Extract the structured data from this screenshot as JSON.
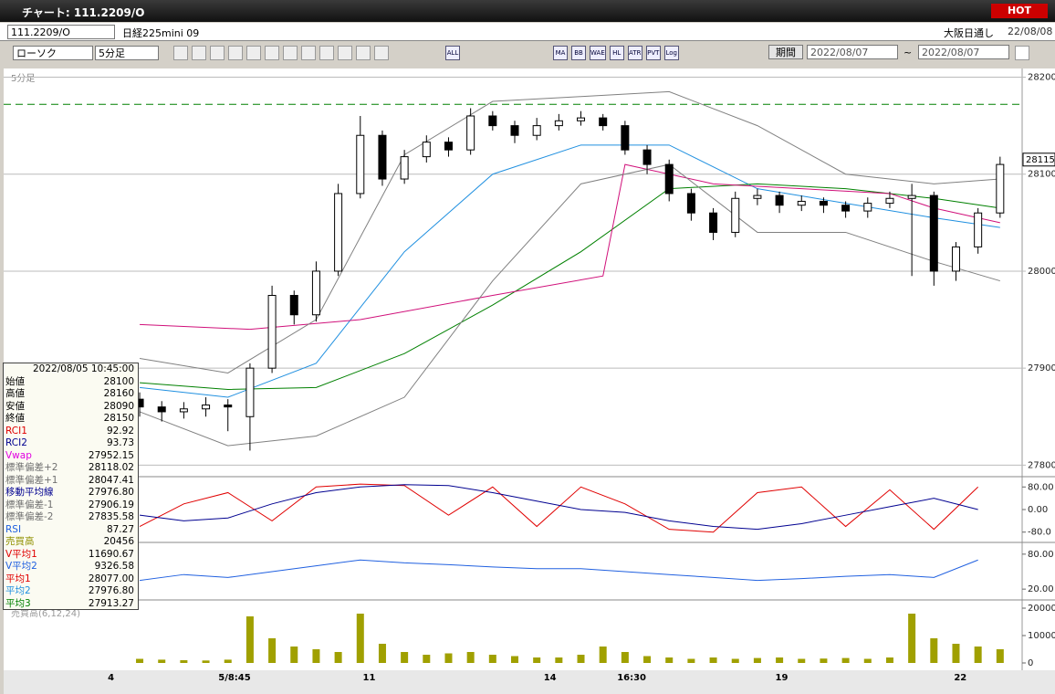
{
  "window": {
    "title": "チャート: 111.2209/O",
    "badge": "HOT"
  },
  "header": {
    "symbol": "111.2209/O",
    "name": "日経225mini 09",
    "market": "大阪日通し",
    "date": "22/08/08"
  },
  "toolbar": {
    "chart_style": "ローソク",
    "period": "5分足",
    "buttons": [
      "ALL",
      "MA",
      "BB",
      "WAE",
      "HL",
      "ATR",
      "PVT",
      "Log"
    ],
    "range_label": "期間",
    "from": "2022/08/07",
    "separator": "~",
    "to": "2022/08/07"
  },
  "info": {
    "datetime": "2022/08/05  10:45:00",
    "rows": [
      {
        "label": "始値",
        "value": "28100",
        "color": "#000000"
      },
      {
        "label": "高値",
        "value": "28160",
        "color": "#000000"
      },
      {
        "label": "安値",
        "value": "28090",
        "color": "#000000"
      },
      {
        "label": "終値",
        "value": "28150",
        "color": "#000000"
      },
      {
        "label": "RCI1",
        "value": "92.92",
        "color": "#e00000"
      },
      {
        "label": "RCI2",
        "value": "93.73",
        "color": "#000090"
      },
      {
        "label": "Vwap",
        "value": "27952.15",
        "color": "#e000e0"
      },
      {
        "label": "標準偏差+2",
        "value": "28118.02",
        "color": "#707070"
      },
      {
        "label": "標準偏差+1",
        "value": "28047.41",
        "color": "#707070"
      },
      {
        "label": "移動平均線",
        "value": "27976.80",
        "color": "#000090"
      },
      {
        "label": "標準偏差-1",
        "value": "27906.19",
        "color": "#707070"
      },
      {
        "label": "標準偏差-2",
        "value": "27835.58",
        "color": "#707070"
      },
      {
        "label": "RSI",
        "value": "87.27",
        "color": "#2060e0"
      },
      {
        "label": "売買高",
        "value": "20456",
        "color": "#909000"
      },
      {
        "label": "V平均1",
        "value": "11690.67",
        "color": "#e00000"
      },
      {
        "label": "V平均2",
        "value": "9326.58",
        "color": "#2060e0"
      },
      {
        "label": "平均1",
        "value": "28077.00",
        "color": "#e00000"
      },
      {
        "label": "平均2",
        "value": "27976.80",
        "color": "#2090e0"
      },
      {
        "label": "平均3",
        "value": "27913.27",
        "color": "#008000"
      }
    ]
  },
  "chart_data": {
    "type": "candlestick",
    "panel_label": "5分足",
    "xlim": [
      -6,
      40
    ],
    "xticks": [
      {
        "value": -1.3,
        "label": "4"
      },
      {
        "value": 4.3,
        "label": "5/8:45"
      },
      {
        "value": 10.4,
        "label": "11"
      },
      {
        "value": 18.6,
        "label": "14"
      },
      {
        "value": 22.3,
        "label": "16:30"
      },
      {
        "value": 29.1,
        "label": "19"
      },
      {
        "value": 37.2,
        "label": "22"
      }
    ],
    "ylim": [
      27790,
      28208
    ],
    "yticks": [
      27800,
      27900,
      28000,
      28100,
      28200
    ],
    "last_price": 28115,
    "hline": 28172,
    "hline_color": "#008000",
    "open": [
      27868,
      27860,
      27855,
      27858,
      27862,
      27850,
      27900,
      27975,
      27955,
      28000,
      28080,
      28140,
      28095,
      28118,
      28133,
      28125,
      28160,
      28150,
      28140,
      28150,
      28155,
      28158,
      28150,
      28125,
      28110,
      28080,
      28060,
      28040,
      28075,
      28078,
      28068,
      28072,
      28068,
      28062,
      28070,
      28075,
      28078,
      28000,
      28025,
      28060
    ],
    "high": [
      27875,
      27866,
      27865,
      27870,
      27868,
      27905,
      27985,
      27980,
      28010,
      28090,
      28160,
      28145,
      28125,
      28140,
      28138,
      28168,
      28165,
      28155,
      28158,
      28162,
      28165,
      28162,
      28155,
      28130,
      28115,
      28085,
      28065,
      28082,
      28085,
      28082,
      28078,
      28076,
      28072,
      28076,
      28082,
      28090,
      28082,
      28030,
      28065,
      28118
    ],
    "low": [
      27850,
      27845,
      27848,
      27850,
      27835,
      27815,
      27895,
      27945,
      27948,
      27995,
      28075,
      28088,
      28090,
      28112,
      28118,
      28120,
      28145,
      28132,
      28135,
      28145,
      28150,
      28145,
      28120,
      28100,
      28072,
      28052,
      28032,
      28035,
      28068,
      28060,
      28062,
      28060,
      28055,
      28055,
      28065,
      27995,
      27985,
      27990,
      28018,
      28055
    ],
    "close": [
      27860,
      27855,
      27858,
      27862,
      27860,
      27900,
      27975,
      27955,
      28000,
      28080,
      28140,
      28095,
      28118,
      28133,
      28125,
      28160,
      28150,
      28140,
      28150,
      28155,
      28158,
      28150,
      28125,
      28110,
      28080,
      28060,
      28040,
      28075,
      28078,
      28068,
      28072,
      28068,
      28062,
      28070,
      28075,
      28078,
      28000,
      28025,
      28060,
      28110
    ],
    "overlays": [
      {
        "color": "#2090e0",
        "x": [
          0,
          4,
          8,
          12,
          16,
          20,
          24,
          28,
          32,
          36,
          39
        ],
        "values": [
          27880,
          27870,
          27905,
          28020,
          28100,
          28130,
          28130,
          28085,
          28070,
          28055,
          28045
        ]
      },
      {
        "color": "#008000",
        "x": [
          0,
          4,
          8,
          12,
          16,
          20,
          24,
          28,
          32,
          36,
          39
        ],
        "values": [
          27885,
          27878,
          27880,
          27915,
          27965,
          28020,
          28085,
          28090,
          28085,
          28075,
          28065
        ]
      },
      {
        "color": "#d0107a",
        "x": [
          0,
          5,
          10,
          16,
          21,
          22,
          26,
          30,
          34,
          36,
          39
        ],
        "values": [
          27945,
          27940,
          27950,
          27975,
          27995,
          28110,
          28090,
          28085,
          28080,
          28065,
          28050
        ]
      },
      {
        "color": "#808080",
        "x": [
          0,
          4,
          8,
          12,
          16,
          20,
          24,
          28,
          32,
          36,
          39
        ],
        "values": [
          27910,
          27895,
          27950,
          28120,
          28175,
          28180,
          28185,
          28150,
          28100,
          28090,
          28095
        ]
      },
      {
        "color": "#808080",
        "x": [
          0,
          4,
          8,
          12,
          16,
          20,
          24,
          28,
          32,
          36,
          39
        ],
        "values": [
          27855,
          27820,
          27830,
          27870,
          27990,
          28090,
          28110,
          28040,
          28040,
          28010,
          27990
        ]
      }
    ],
    "rci": {
      "ylim": [
        -110,
        110
      ],
      "yticks": [
        {
          "value": 80,
          "label": "80.00"
        },
        {
          "value": 0,
          "label": "0.00"
        },
        {
          "value": -80,
          "label": "-80.0"
        }
      ],
      "x": [
        0,
        2,
        4,
        6,
        8,
        10,
        12,
        14,
        16,
        18,
        20,
        22,
        24,
        26,
        28,
        30,
        32,
        34,
        36,
        38
      ],
      "series": [
        {
          "color": "#e00000",
          "values": [
            -60,
            20,
            60,
            -40,
            80,
            90,
            85,
            -20,
            80,
            -60,
            80,
            20,
            -70,
            -80,
            60,
            80,
            -60,
            70,
            -70,
            80
          ]
        },
        {
          "color": "#000090",
          "values": [
            -20,
            -40,
            -30,
            20,
            60,
            80,
            88,
            85,
            60,
            30,
            0,
            -10,
            -40,
            -60,
            -70,
            -50,
            -20,
            10,
            40,
            0
          ]
        }
      ]
    },
    "rsi": {
      "ylim": [
        3,
        97
      ],
      "yticks": [
        {
          "value": 80,
          "label": "80.00"
        },
        {
          "value": 20,
          "label": "20.00"
        }
      ],
      "color": "#2060e0",
      "x": [
        0,
        2,
        4,
        6,
        8,
        10,
        12,
        14,
        16,
        18,
        20,
        22,
        24,
        26,
        28,
        30,
        32,
        34,
        36,
        38
      ],
      "values": [
        35,
        45,
        40,
        50,
        60,
        70,
        65,
        62,
        58,
        55,
        55,
        50,
        45,
        40,
        35,
        38,
        42,
        45,
        40,
        70
      ]
    },
    "volume": {
      "label": "売買高(6,12,24)",
      "ylim": [
        0,
        22000
      ],
      "yticks": [
        0,
        10000,
        20000
      ],
      "color": "#a0a000",
      "values": [
        1500,
        1200,
        1000,
        900,
        1200,
        17000,
        9000,
        6000,
        5000,
        4000,
        18000,
        7000,
        4000,
        3000,
        3500,
        4000,
        3000,
        2500,
        2000,
        2000,
        3000,
        6000,
        4000,
        2500,
        2000,
        1500,
        2000,
        1500,
        1800,
        2000,
        1500,
        1600,
        1800,
        1500,
        2000,
        18000,
        9000,
        7000,
        6000,
        5000
      ]
    }
  }
}
